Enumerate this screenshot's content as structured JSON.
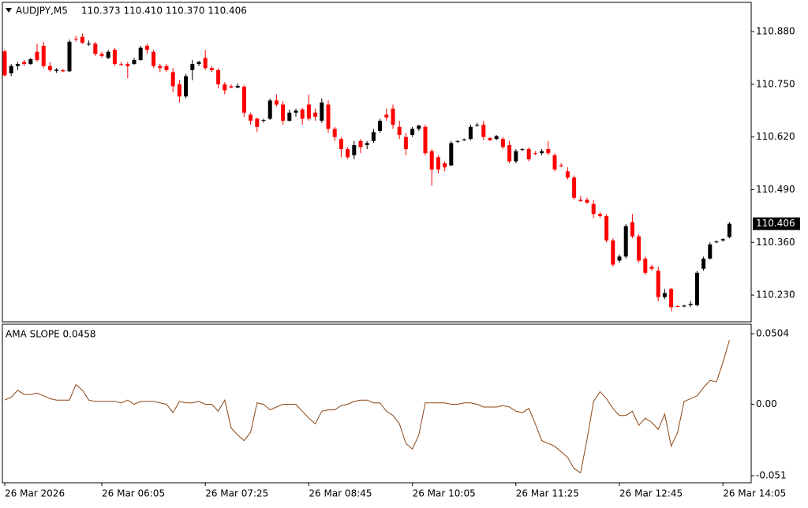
{
  "chart_data": {
    "type": "candlestick",
    "symbol": "AUDJPY,M5",
    "header_values": "110.373 110.410 110.370 110.406",
    "bull_color": "#000000",
    "bear_color": "#ff0000",
    "open": [
      110.831,
      110.777,
      110.795,
      110.805,
      110.8,
      110.83,
      110.845,
      110.795,
      110.783,
      110.785,
      110.782,
      110.862,
      110.867,
      110.848,
      110.85,
      110.825,
      110.815,
      110.835,
      110.8,
      110.8,
      110.8,
      110.81,
      110.845,
      110.83,
      110.795,
      110.795,
      110.78,
      110.75,
      110.72,
      110.785,
      110.8,
      110.815,
      110.79,
      110.785,
      110.75,
      110.745,
      110.742,
      110.744,
      110.675,
      110.665,
      110.66,
      110.665,
      110.71,
      110.7,
      110.66,
      110.68,
      110.688,
      110.7,
      110.68,
      110.66,
      110.7,
      110.64,
      110.615,
      110.59,
      110.575,
      110.61,
      110.6,
      110.61,
      110.635,
      110.675,
      110.69,
      110.645,
      110.62,
      110.625,
      110.64,
      110.645,
      110.585,
      110.57,
      110.555,
      110.55,
      110.608,
      110.612,
      110.615,
      110.648,
      110.65,
      110.617,
      110.615,
      110.615,
      110.6,
      110.56,
      110.588,
      110.59,
      110.58,
      110.58,
      110.59,
      110.575,
      110.55,
      110.535,
      110.52,
      110.465,
      110.465,
      110.455,
      110.43,
      110.425,
      110.365,
      110.315,
      110.325,
      110.41,
      110.375,
      110.32,
      110.3,
      110.29,
      110.225,
      110.245,
      110.203,
      110.203,
      110.205,
      110.205,
      110.295,
      110.32,
      110.36,
      110.365,
      110.373
    ],
    "high": [
      110.836,
      110.8,
      110.805,
      110.81,
      110.815,
      110.85,
      110.855,
      110.805,
      110.79,
      110.788,
      110.86,
      110.87,
      110.875,
      110.858,
      110.855,
      110.83,
      110.835,
      110.84,
      110.805,
      110.805,
      110.815,
      110.845,
      110.85,
      110.835,
      110.8,
      110.8,
      110.79,
      110.76,
      110.775,
      110.81,
      110.808,
      110.835,
      110.795,
      110.79,
      110.755,
      110.75,
      110.752,
      110.748,
      110.68,
      110.668,
      110.665,
      110.715,
      110.725,
      110.708,
      110.688,
      110.69,
      110.692,
      110.725,
      110.69,
      110.715,
      110.71,
      110.645,
      110.62,
      110.595,
      110.61,
      110.615,
      110.61,
      110.64,
      110.665,
      110.69,
      110.7,
      110.66,
      110.63,
      110.645,
      110.65,
      110.65,
      110.59,
      110.575,
      110.56,
      110.61,
      110.612,
      110.616,
      110.65,
      110.655,
      110.66,
      110.62,
      110.625,
      110.62,
      110.61,
      110.59,
      110.592,
      110.595,
      110.585,
      110.59,
      110.61,
      110.58,
      110.555,
      110.545,
      110.525,
      110.475,
      110.47,
      110.465,
      110.435,
      110.43,
      110.37,
      110.33,
      110.405,
      110.43,
      110.38,
      110.325,
      110.305,
      110.3,
      110.245,
      110.248,
      110.205,
      110.206,
      110.215,
      110.29,
      110.325,
      110.36,
      110.365,
      110.37,
      110.41
    ],
    "low": [
      110.769,
      110.77,
      110.785,
      110.795,
      110.798,
      110.805,
      110.79,
      110.78,
      110.778,
      110.78,
      110.78,
      110.855,
      110.85,
      110.845,
      110.82,
      110.815,
      110.812,
      110.795,
      110.795,
      110.765,
      110.798,
      110.808,
      110.825,
      110.79,
      110.78,
      110.78,
      110.73,
      110.705,
      110.715,
      110.76,
      110.795,
      110.785,
      110.78,
      110.74,
      110.725,
      110.74,
      110.74,
      110.67,
      110.65,
      110.632,
      110.655,
      110.662,
      110.695,
      110.65,
      110.658,
      110.67,
      110.65,
      110.66,
      110.66,
      110.655,
      110.63,
      110.61,
      110.57,
      110.565,
      110.565,
      110.58,
      110.59,
      110.605,
      110.63,
      110.66,
      110.64,
      110.615,
      110.575,
      110.62,
      110.635,
      110.575,
      110.5,
      110.53,
      110.535,
      110.548,
      110.605,
      110.61,
      110.612,
      110.645,
      110.612,
      110.61,
      110.612,
      110.59,
      110.555,
      110.555,
      110.585,
      110.56,
      110.575,
      110.575,
      110.575,
      110.535,
      110.545,
      110.515,
      110.465,
      110.46,
      110.455,
      110.42,
      110.42,
      110.36,
      110.3,
      110.31,
      110.32,
      110.37,
      110.31,
      110.28,
      110.29,
      110.215,
      110.22,
      110.19,
      110.2,
      110.2,
      110.2,
      110.202,
      110.29,
      110.318,
      110.358,
      110.362,
      110.37
    ],
    "close": [
      110.772,
      110.795,
      110.8,
      110.8,
      110.812,
      110.81,
      110.795,
      110.785,
      110.786,
      110.782,
      110.855,
      110.86,
      110.852,
      110.85,
      110.825,
      110.82,
      110.83,
      110.8,
      110.798,
      110.795,
      110.81,
      110.84,
      110.835,
      110.795,
      110.79,
      110.785,
      110.745,
      110.72,
      110.77,
      110.8,
      110.805,
      110.79,
      110.785,
      110.75,
      110.735,
      110.742,
      110.746,
      110.68,
      110.66,
      110.645,
      110.662,
      110.71,
      110.7,
      110.66,
      110.68,
      110.685,
      110.665,
      110.665,
      110.67,
      110.705,
      110.64,
      110.62,
      110.59,
      110.57,
      110.6,
      110.595,
      110.605,
      110.632,
      110.66,
      110.668,
      110.65,
      110.625,
      110.59,
      110.64,
      110.648,
      110.58,
      110.54,
      110.54,
      110.545,
      110.605,
      110.61,
      110.614,
      110.645,
      110.65,
      110.62,
      110.612,
      110.622,
      110.595,
      110.56,
      110.585,
      110.59,
      110.565,
      110.578,
      110.585,
      110.58,
      110.54,
      110.548,
      110.52,
      110.47,
      110.462,
      110.458,
      110.43,
      110.425,
      110.365,
      110.305,
      110.325,
      110.4,
      110.375,
      110.315,
      110.285,
      110.295,
      110.225,
      110.235,
      110.2,
      110.202,
      110.204,
      110.208,
      110.285,
      110.32,
      110.355,
      110.362,
      110.368,
      110.406
    ],
    "ylim": [
      110.164,
      110.952
    ],
    "yticks": [
      {
        "value": 110.23,
        "label": "110.230"
      },
      {
        "value": 110.36,
        "label": "110.360"
      },
      {
        "value": 110.49,
        "label": "110.490"
      },
      {
        "value": 110.62,
        "label": "110.620"
      },
      {
        "value": 110.75,
        "label": "110.750"
      },
      {
        "value": 110.88,
        "label": "110.880"
      }
    ],
    "last_price": 110.406,
    "xticks": [
      {
        "value": 0,
        "label": "26 Mar 2026"
      },
      {
        "value": 15,
        "label": "26 Mar 06:05"
      },
      {
        "value": 31,
        "label": "26 Mar 07:25"
      },
      {
        "value": 47,
        "label": "26 Mar 08:45"
      },
      {
        "value": 63,
        "label": "26 Mar 10:05"
      },
      {
        "value": 79,
        "label": "26 Mar 11:25"
      },
      {
        "value": 95,
        "label": "26 Mar 12:45"
      },
      {
        "value": 111,
        "label": "26 Mar 14:05"
      }
    ],
    "indicator": {
      "title": "AMA SLOPE 0.0458",
      "color": "#8b4513",
      "values": [
        0.003,
        0.005,
        0.01,
        0.007,
        0.007,
        0.008,
        0.006,
        0.004,
        0.003,
        0.003,
        0.003,
        0.014,
        0.01,
        0.003,
        0.002,
        0.002,
        0.002,
        0.002,
        0.001,
        0.003,
        0.0,
        0.002,
        0.002,
        0.002,
        0.001,
        0.0,
        -0.006,
        0.002,
        0.001,
        0.001,
        0.002,
        0.0,
        0.0,
        -0.005,
        0.003,
        -0.017,
        -0.022,
        -0.026,
        -0.02,
        0.001,
        0.0,
        -0.004,
        -0.002,
        0.0,
        0.0,
        0.0,
        -0.005,
        -0.01,
        -0.014,
        -0.005,
        -0.004,
        -0.004,
        -0.001,
        0.0,
        0.002,
        0.003,
        0.003,
        0.001,
        0.001,
        -0.005,
        -0.008,
        -0.014,
        -0.028,
        -0.032,
        -0.022,
        0.001,
        0.001,
        0.001,
        0.001,
        0.0,
        0.0,
        0.001,
        0.001,
        0.0,
        -0.002,
        -0.002,
        -0.002,
        -0.001,
        -0.002,
        -0.005,
        -0.006,
        -0.003,
        -0.014,
        -0.026,
        -0.028,
        -0.03,
        -0.034,
        -0.038,
        -0.046,
        -0.049,
        -0.025,
        0.002,
        0.009,
        0.004,
        -0.003,
        -0.008,
        -0.008,
        -0.005,
        -0.015,
        -0.01,
        -0.013,
        -0.018,
        -0.007,
        -0.03,
        -0.02,
        0.002,
        0.004,
        0.006,
        0.012,
        0.017,
        0.016,
        0.03,
        0.0458
      ],
      "ylim": [
        -0.0561,
        0.0572
      ],
      "yticks": [
        {
          "value": 0.0504,
          "label": "0.0504"
        },
        {
          "value": 0,
          "label": "0.00"
        },
        {
          "value": -0.051,
          "label": "-0.051"
        }
      ]
    }
  }
}
